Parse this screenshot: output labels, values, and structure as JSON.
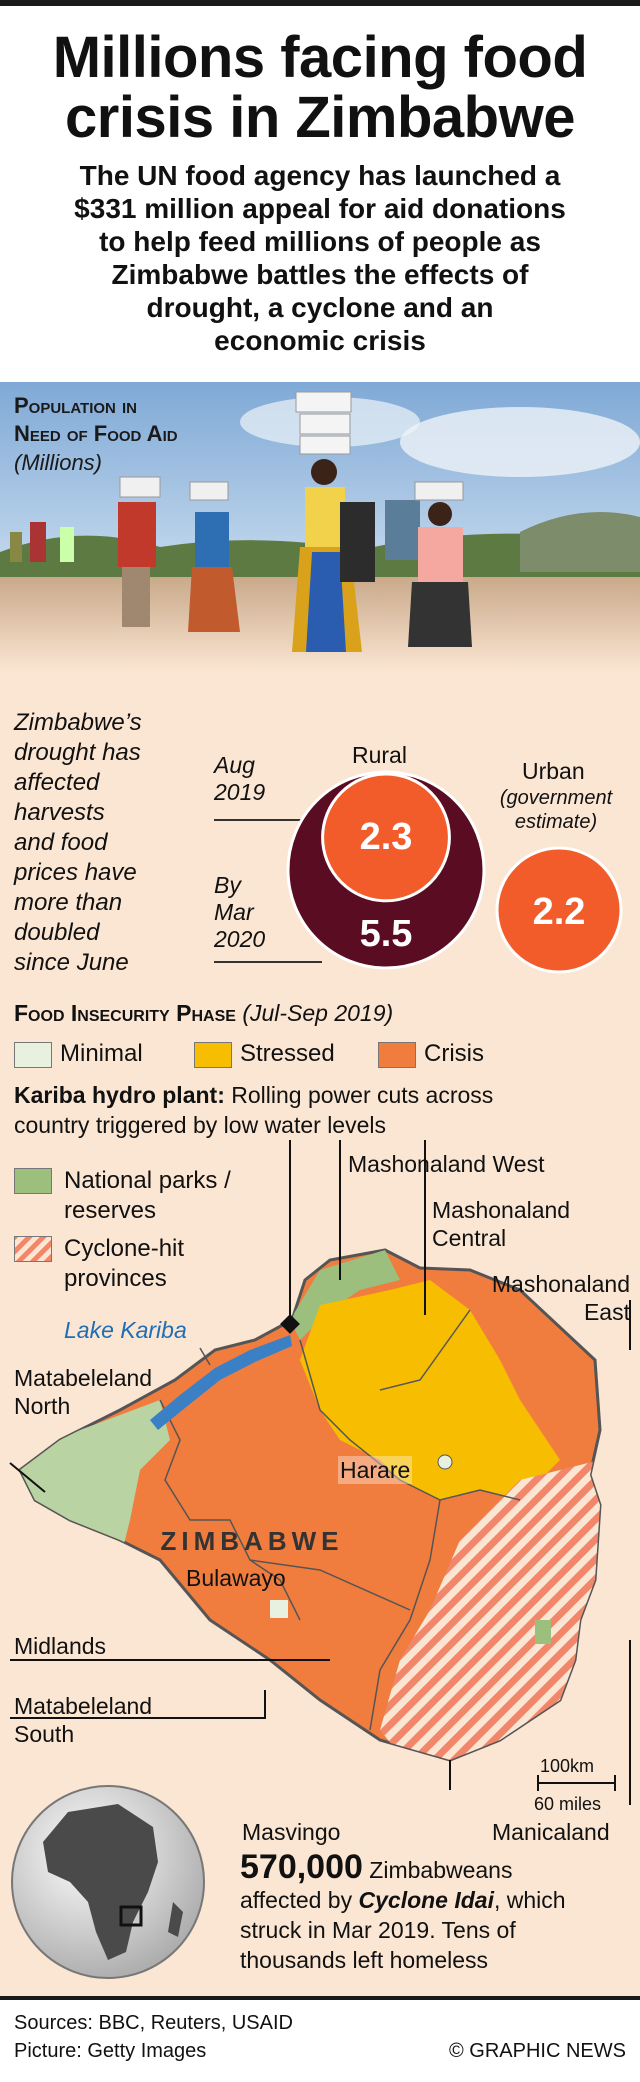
{
  "header": {
    "title_line1": "Millions facing food",
    "title_line2": "crisis in Zimbabwe",
    "subtitle_lines": [
      "The UN food agency has launched a",
      "$331 million appeal for aid donations",
      "to help feed millions of people as",
      "Zimbabwe battles the effects of",
      "drought, a cyclone and an",
      "economic crisis"
    ]
  },
  "population": {
    "title_line1": "Population in",
    "title_line2": "Need of Food Aid",
    "units": "(Millions)",
    "drought_note_lines": [
      "Zimbabwe’s",
      "drought has",
      "affected",
      "harvests",
      "and food",
      "prices have",
      "more than",
      "doubled",
      "since June"
    ],
    "aug_label_line1": "Aug",
    "aug_label_line2": "2019",
    "mar_label_line1": "By",
    "mar_label_line2": "Mar",
    "mar_label_line3": "2020",
    "rural_label": "Rural",
    "rural_aug_value": "2.3",
    "rural_mar_value": "5.5",
    "urban_label": "Urban",
    "urban_sub_line1": "(government",
    "urban_sub_line2": "estimate)",
    "urban_value": "2.2"
  },
  "chart_data": {
    "type": "bubble",
    "units": "Millions",
    "series": [
      {
        "name": "Rural",
        "points": [
          {
            "period": "Aug 2019",
            "value": 2.3
          },
          {
            "period": "By Mar 2020",
            "value": 5.5
          }
        ]
      },
      {
        "name": "Urban",
        "points": [
          {
            "period": "",
            "value": 2.2
          }
        ]
      }
    ]
  },
  "phase": {
    "title": "Food Insecurity Phase",
    "period": "(Jul-Sep 2019)",
    "legend": [
      {
        "label": "Minimal",
        "color": "#e8f0e0"
      },
      {
        "label": "Stressed",
        "color": "#f7bd00"
      },
      {
        "label": "Crisis",
        "color": "#f07d3e"
      }
    ]
  },
  "kariba": {
    "bold": "Kariba hydro plant:",
    "text_line1": " Rolling power cuts across",
    "text_line2": "country triggered by low water levels"
  },
  "map_legend": {
    "parks_line1": "National parks /",
    "parks_line2": "reserves",
    "parks_color": "#9cbf7e",
    "cyclone_line1": "Cyclone-hit",
    "cyclone_line2": "provinces",
    "cyclone_color": "#f2866a"
  },
  "map": {
    "country": "ZIMBABWE",
    "lake": "Lake Kariba",
    "lake_color": "#3b7fc4",
    "cities": [
      "Harare",
      "Bulawayo"
    ],
    "regions": {
      "mashonaland_west": "Mashonaland West",
      "mashonaland_central_1": "Mashonaland",
      "mashonaland_central_2": "Central",
      "mashonaland_east_1": "Mashonaland",
      "mashonaland_east_2": "East",
      "matabeleland_north_1": "Matabeleland",
      "matabeleland_north_2": "North",
      "midlands": "Midlands",
      "matabeleland_south_1": "Matabeleland",
      "matabeleland_south_2": "South",
      "masvingo": "Masvingo",
      "manicaland": "Manicaland"
    },
    "scale_km": "100km",
    "scale_miles": "60 miles"
  },
  "cyclone": {
    "number": "570,000",
    "line1_rest": " Zimbabweans",
    "line2_a": "affected by ",
    "line2_b": "Cyclone Idai",
    "line2_c": ", which",
    "line3": "struck in Mar 2019. Tens of",
    "line4": "thousands left homeless"
  },
  "footer": {
    "sources": "Sources: BBC, Reuters, USAID",
    "picture": "Picture: Getty Images",
    "credit": "© GRAPHIC NEWS"
  }
}
